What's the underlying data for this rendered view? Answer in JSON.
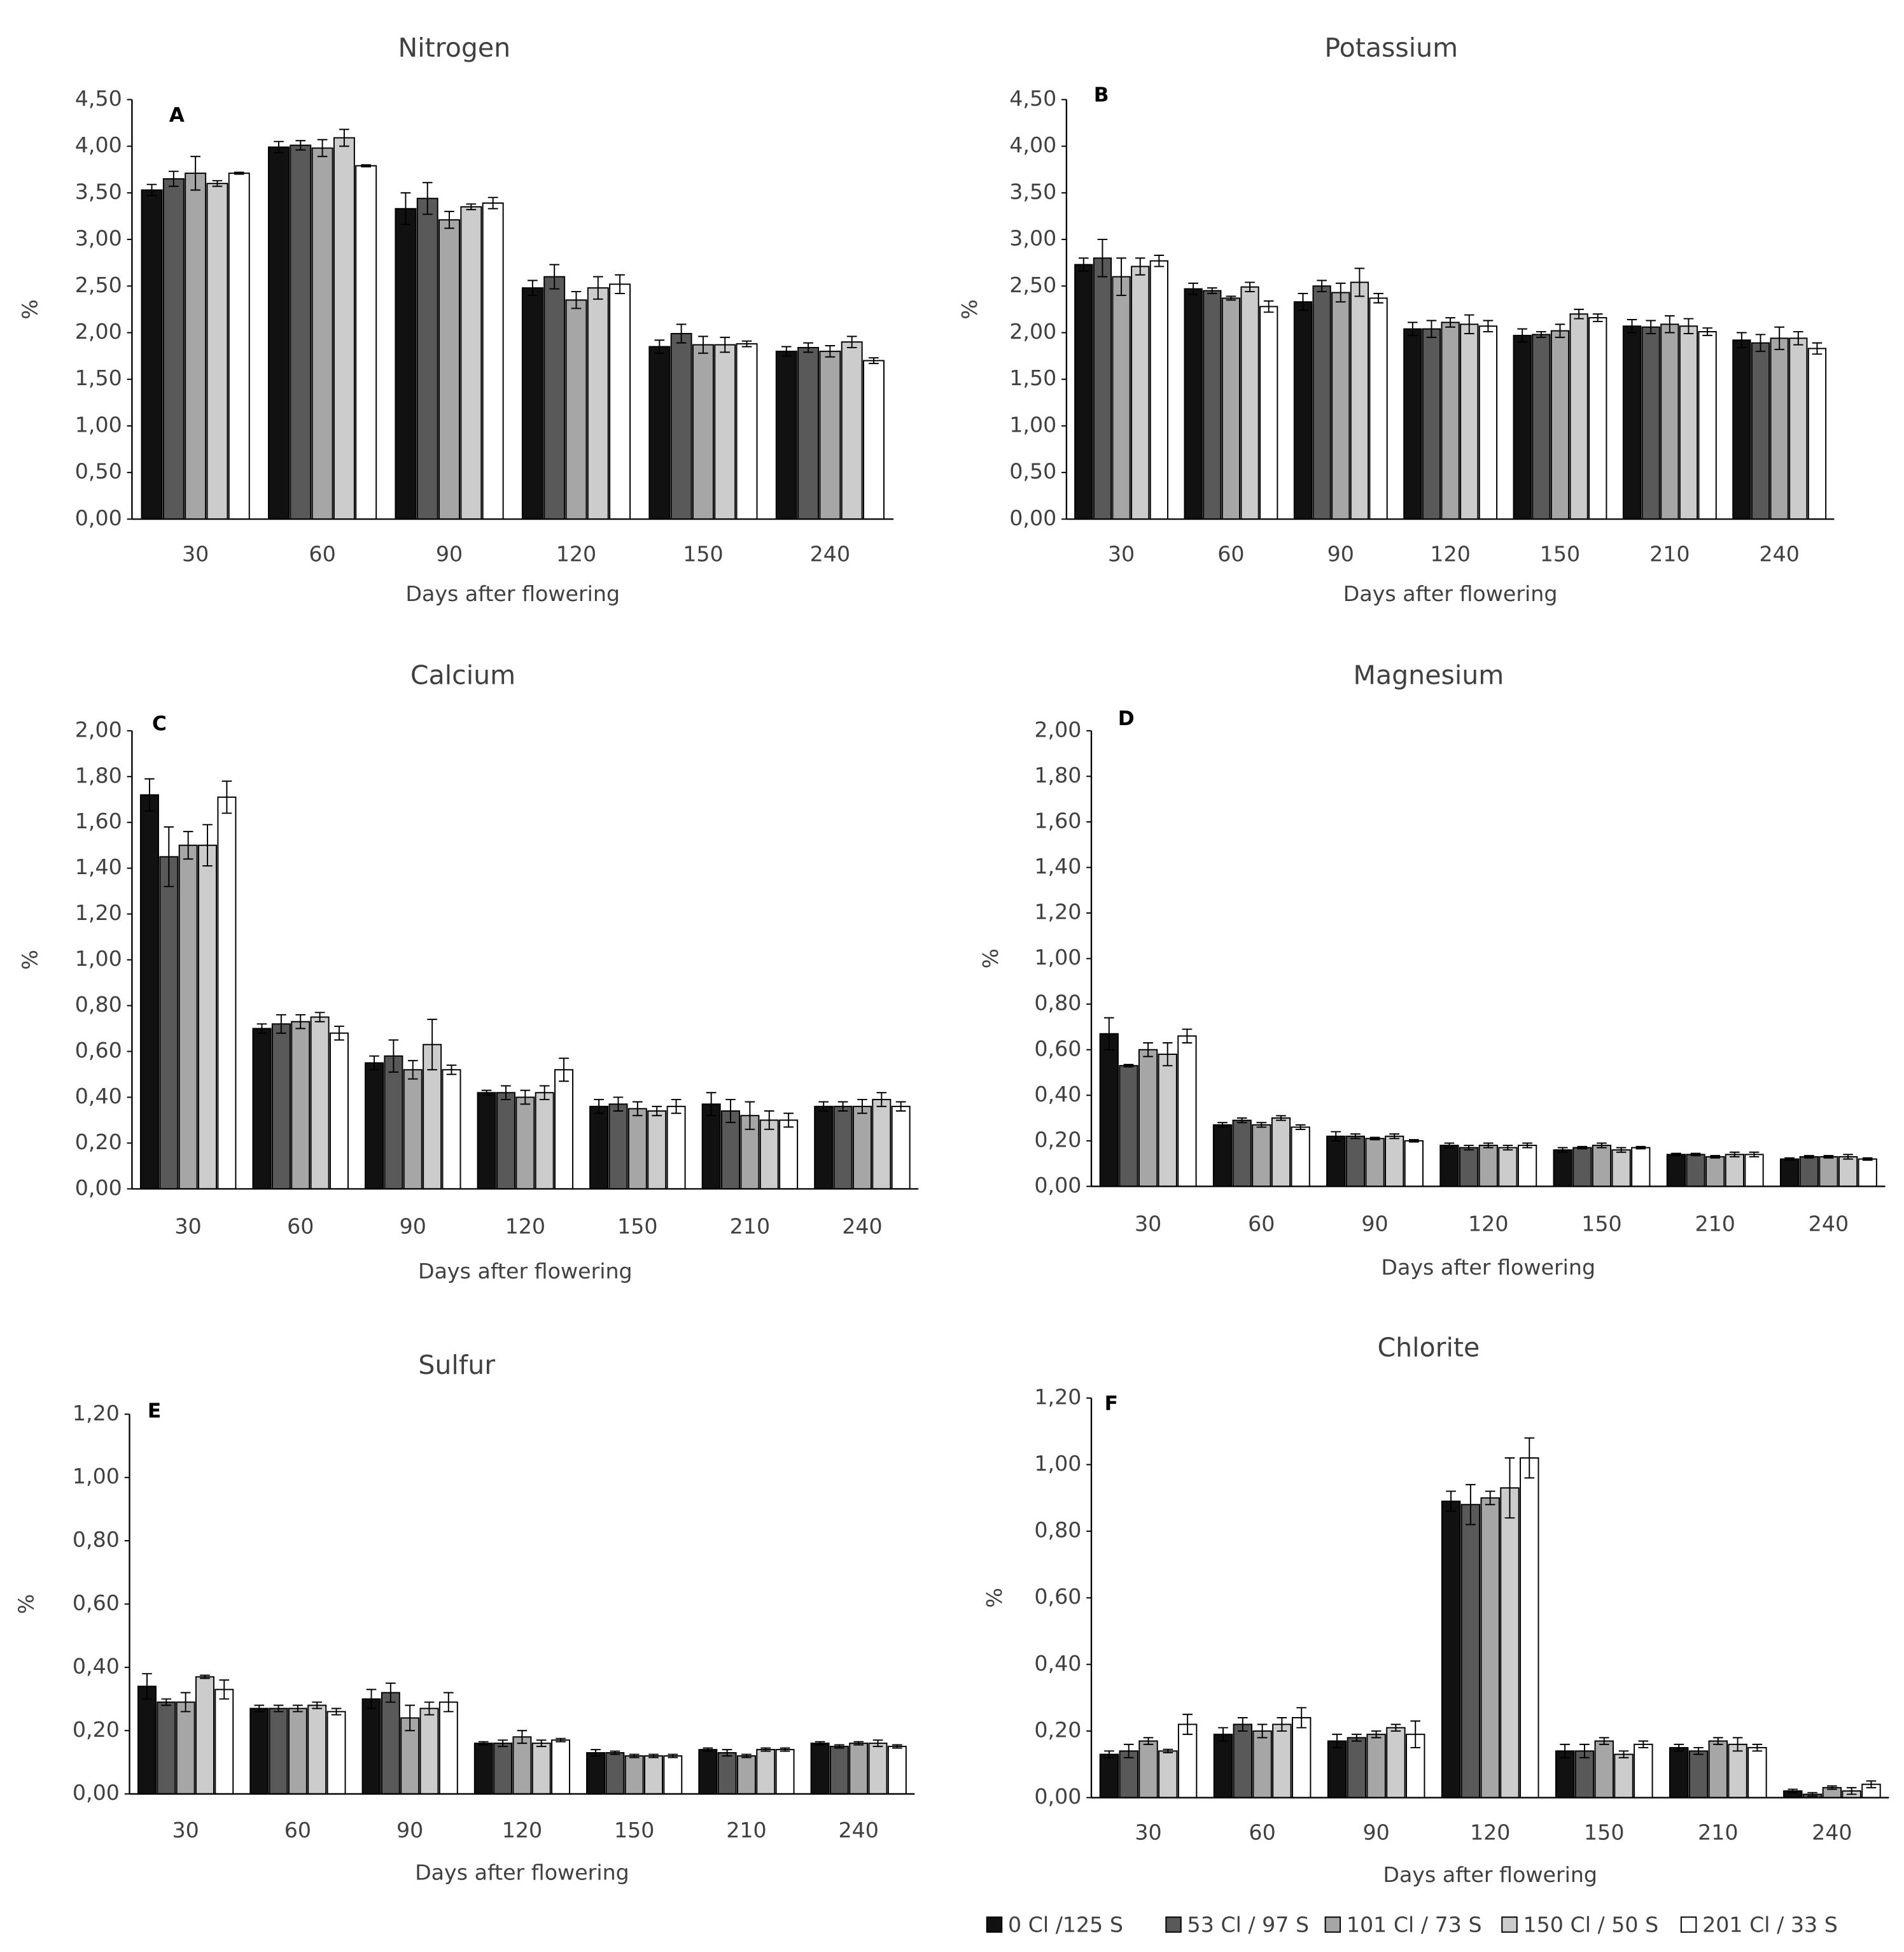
{
  "legend": [
    {
      "name": "0 Cl /125 S",
      "color": "#111111"
    },
    {
      "name": "53 Cl / 97 S",
      "color": "#595959"
    },
    {
      "name": "101 Cl / 73 S",
      "color": "#a6a6a6"
    },
    {
      "name": "150 Cl / 50 S",
      "color": "#cccccc"
    },
    {
      "name": "201 Cl / 33 S",
      "color": "#ffffff"
    }
  ],
  "chart_data": [
    {
      "type": "bar",
      "title": "Nitrogen",
      "panel": "A",
      "y_label": "%",
      "x_label": "Days after flowering",
      "categories": [
        "30",
        "60",
        "90",
        "120",
        "150",
        "240"
      ],
      "ylim": [
        0,
        4.5
      ],
      "yticks": [
        {
          "value": 0,
          "label": "0,00"
        },
        {
          "value": 0.5,
          "label": "0,50"
        },
        {
          "value": 1,
          "label": "1,00"
        },
        {
          "value": 1.5,
          "label": "1,50"
        },
        {
          "value": 2,
          "label": "2,00"
        },
        {
          "value": 2.5,
          "label": "2,50"
        },
        {
          "value": 3,
          "label": "3,00"
        },
        {
          "value": 3.5,
          "label": "3,50"
        },
        {
          "value": 4,
          "label": "4,00"
        },
        {
          "value": 4.5,
          "label": "4,50"
        }
      ],
      "series": [
        {
          "values": [
            3.53,
            3.99,
            3.33,
            2.48,
            1.85,
            1.8
          ],
          "errors": [
            0.06,
            0.06,
            0.17,
            0.08,
            0.07,
            0.05
          ]
        },
        {
          "values": [
            3.65,
            4.01,
            3.44,
            2.6,
            1.99,
            1.84
          ],
          "errors": [
            0.08,
            0.05,
            0.17,
            0.13,
            0.1,
            0.05
          ]
        },
        {
          "values": [
            3.71,
            3.98,
            3.21,
            2.35,
            1.87,
            1.8
          ],
          "errors": [
            0.18,
            0.09,
            0.09,
            0.09,
            0.09,
            0.06
          ]
        },
        {
          "values": [
            3.6,
            4.09,
            3.35,
            2.48,
            1.87,
            1.9
          ],
          "errors": [
            0.03,
            0.09,
            0.03,
            0.12,
            0.08,
            0.06
          ]
        },
        {
          "values": [
            3.71,
            3.79,
            3.39,
            2.52,
            1.88,
            1.7
          ],
          "errors": [
            0.01,
            0.01,
            0.06,
            0.1,
            0.03,
            0.03
          ]
        }
      ]
    },
    {
      "type": "bar",
      "title": "Potassium",
      "panel": "B",
      "y_label": "%",
      "x_label": "Days after flowering",
      "categories": [
        "30",
        "60",
        "90",
        "120",
        "150",
        "210",
        "240"
      ],
      "ylim": [
        0,
        4.5
      ],
      "yticks": [
        {
          "value": 0,
          "label": "0,00"
        },
        {
          "value": 0.5,
          "label": "0,50"
        },
        {
          "value": 1,
          "label": "1,00"
        },
        {
          "value": 1.5,
          "label": "1,50"
        },
        {
          "value": 2,
          "label": "2,00"
        },
        {
          "value": 2.5,
          "label": "2,50"
        },
        {
          "value": 3,
          "label": "3,00"
        },
        {
          "value": 3.5,
          "label": "3,50"
        },
        {
          "value": 4,
          "label": "4,00"
        },
        {
          "value": 4.5,
          "label": "4,50"
        }
      ],
      "series": [
        {
          "values": [
            2.73,
            2.47,
            2.33,
            2.04,
            1.97,
            2.07,
            1.92
          ],
          "errors": [
            0.07,
            0.06,
            0.09,
            0.07,
            0.07,
            0.07,
            0.08
          ]
        },
        {
          "values": [
            2.8,
            2.45,
            2.5,
            2.04,
            1.98,
            2.06,
            1.89
          ],
          "errors": [
            0.2,
            0.03,
            0.06,
            0.09,
            0.03,
            0.07,
            0.09
          ]
        },
        {
          "values": [
            2.6,
            2.37,
            2.43,
            2.11,
            2.02,
            2.09,
            1.94
          ],
          "errors": [
            0.2,
            0.02,
            0.1,
            0.05,
            0.07,
            0.09,
            0.12
          ]
        },
        {
          "values": [
            2.71,
            2.49,
            2.54,
            2.09,
            2.2,
            2.07,
            1.94
          ],
          "errors": [
            0.09,
            0.05,
            0.15,
            0.1,
            0.05,
            0.08,
            0.07
          ]
        },
        {
          "values": [
            2.77,
            2.28,
            2.37,
            2.07,
            2.16,
            2.01,
            1.83
          ],
          "errors": [
            0.06,
            0.06,
            0.05,
            0.06,
            0.04,
            0.04,
            0.06
          ]
        }
      ]
    },
    {
      "type": "bar",
      "title": "Calcium",
      "panel": "C",
      "y_label": "%",
      "x_label": "Days after flowering",
      "categories": [
        "30",
        "60",
        "90",
        "120",
        "150",
        "210",
        "240"
      ],
      "ylim": [
        0,
        2
      ],
      "yticks": [
        {
          "value": 0,
          "label": "0,00"
        },
        {
          "value": 0.2,
          "label": "0,20"
        },
        {
          "value": 0.4,
          "label": "0,40"
        },
        {
          "value": 0.6,
          "label": "0,60"
        },
        {
          "value": 0.8,
          "label": "0,80"
        },
        {
          "value": 1,
          "label": "1,00"
        },
        {
          "value": 1.2,
          "label": "1,20"
        },
        {
          "value": 1.4,
          "label": "1,40"
        },
        {
          "value": 1.6,
          "label": "1,60"
        },
        {
          "value": 1.8,
          "label": "1,80"
        },
        {
          "value": 2,
          "label": "2,00"
        }
      ],
      "series": [
        {
          "values": [
            1.72,
            0.7,
            0.55,
            0.42,
            0.36,
            0.37,
            0.36
          ],
          "errors": [
            0.07,
            0.02,
            0.03,
            0.01,
            0.03,
            0.05,
            0.02
          ]
        },
        {
          "values": [
            1.45,
            0.72,
            0.58,
            0.42,
            0.37,
            0.34,
            0.36
          ],
          "errors": [
            0.13,
            0.04,
            0.07,
            0.03,
            0.03,
            0.05,
            0.02
          ]
        },
        {
          "values": [
            1.5,
            0.73,
            0.52,
            0.4,
            0.35,
            0.32,
            0.36
          ],
          "errors": [
            0.06,
            0.03,
            0.04,
            0.03,
            0.03,
            0.06,
            0.03
          ]
        },
        {
          "values": [
            1.5,
            0.75,
            0.63,
            0.42,
            0.34,
            0.3,
            0.39
          ],
          "errors": [
            0.09,
            0.02,
            0.11,
            0.03,
            0.02,
            0.04,
            0.03
          ]
        },
        {
          "values": [
            1.71,
            0.68,
            0.52,
            0.52,
            0.36,
            0.3,
            0.36
          ],
          "errors": [
            0.07,
            0.03,
            0.02,
            0.05,
            0.03,
            0.03,
            0.02
          ]
        }
      ]
    },
    {
      "type": "bar",
      "title": "Magnesium",
      "panel": "D",
      "y_label": "%",
      "x_label": "Days after flowering",
      "categories": [
        "30",
        "60",
        "90",
        "120",
        "150",
        "210",
        "240"
      ],
      "ylim": [
        0,
        2
      ],
      "yticks": [
        {
          "value": 0,
          "label": "0,00"
        },
        {
          "value": 0.2,
          "label": "0,20"
        },
        {
          "value": 0.4,
          "label": "0,40"
        },
        {
          "value": 0.6,
          "label": "0,60"
        },
        {
          "value": 0.8,
          "label": "0,80"
        },
        {
          "value": 1,
          "label": "1,00"
        },
        {
          "value": 1.2,
          "label": "1,20"
        },
        {
          "value": 1.4,
          "label": "1,40"
        },
        {
          "value": 1.6,
          "label": "1,60"
        },
        {
          "value": 1.8,
          "label": "1,80"
        },
        {
          "value": 2,
          "label": "2,00"
        }
      ],
      "series": [
        {
          "values": [
            0.67,
            0.27,
            0.22,
            0.18,
            0.16,
            0.14,
            0.12
          ],
          "errors": [
            0.07,
            0.01,
            0.02,
            0.01,
            0.01,
            0.005,
            0.005
          ]
        },
        {
          "values": [
            0.53,
            0.29,
            0.22,
            0.17,
            0.17,
            0.14,
            0.13
          ],
          "errors": [
            0.005,
            0.01,
            0.01,
            0.01,
            0.005,
            0.005,
            0.005
          ]
        },
        {
          "values": [
            0.6,
            0.27,
            0.21,
            0.18,
            0.18,
            0.13,
            0.13
          ],
          "errors": [
            0.03,
            0.01,
            0.005,
            0.01,
            0.01,
            0.005,
            0.005
          ]
        },
        {
          "values": [
            0.58,
            0.3,
            0.22,
            0.17,
            0.16,
            0.14,
            0.13
          ],
          "errors": [
            0.05,
            0.01,
            0.01,
            0.01,
            0.01,
            0.01,
            0.01
          ]
        },
        {
          "values": [
            0.66,
            0.26,
            0.2,
            0.18,
            0.17,
            0.14,
            0.12
          ],
          "errors": [
            0.03,
            0.01,
            0.005,
            0.01,
            0.005,
            0.01,
            0.005
          ]
        }
      ]
    },
    {
      "type": "bar",
      "title": "Sulfur",
      "panel": "E",
      "y_label": "%",
      "x_label": "Days after flowering",
      "categories": [
        "30",
        "60",
        "90",
        "120",
        "150",
        "210",
        "240"
      ],
      "ylim": [
        0,
        1.2
      ],
      "yticks": [
        {
          "value": 0,
          "label": "0,00"
        },
        {
          "value": 0.2,
          "label": "0,20"
        },
        {
          "value": 0.4,
          "label": "0,40"
        },
        {
          "value": 0.6,
          "label": "0,60"
        },
        {
          "value": 0.8,
          "label": "0,80"
        },
        {
          "value": 1,
          "label": "1,00"
        },
        {
          "value": 1.2,
          "label": "1,20"
        }
      ],
      "series": [
        {
          "values": [
            0.34,
            0.27,
            0.3,
            0.16,
            0.13,
            0.14,
            0.16
          ],
          "errors": [
            0.04,
            0.01,
            0.03,
            0.005,
            0.01,
            0.005,
            0.005
          ]
        },
        {
          "values": [
            0.29,
            0.27,
            0.32,
            0.16,
            0.13,
            0.13,
            0.15
          ],
          "errors": [
            0.01,
            0.01,
            0.03,
            0.01,
            0.005,
            0.01,
            0.005
          ]
        },
        {
          "values": [
            0.29,
            0.27,
            0.24,
            0.18,
            0.12,
            0.12,
            0.16
          ],
          "errors": [
            0.03,
            0.01,
            0.04,
            0.02,
            0.005,
            0.005,
            0.005
          ]
        },
        {
          "values": [
            0.37,
            0.28,
            0.27,
            0.16,
            0.12,
            0.14,
            0.16
          ],
          "errors": [
            0.005,
            0.01,
            0.02,
            0.01,
            0.005,
            0.005,
            0.01
          ]
        },
        {
          "values": [
            0.33,
            0.26,
            0.29,
            0.17,
            0.12,
            0.14,
            0.15
          ],
          "errors": [
            0.03,
            0.01,
            0.03,
            0.005,
            0.005,
            0.005,
            0.005
          ]
        }
      ]
    },
    {
      "type": "bar",
      "title": "Chlorite",
      "panel": "F",
      "y_label": "%",
      "x_label": "Days after flowering",
      "categories": [
        "30",
        "60",
        "90",
        "120",
        "150",
        "210",
        "240"
      ],
      "ylim": [
        0,
        1.2
      ],
      "yticks": [
        {
          "value": 0,
          "label": "0,00"
        },
        {
          "value": 0.2,
          "label": "0,20"
        },
        {
          "value": 0.4,
          "label": "0,40"
        },
        {
          "value": 0.6,
          "label": "0,60"
        },
        {
          "value": 0.8,
          "label": "0,80"
        },
        {
          "value": 1,
          "label": "1,00"
        },
        {
          "value": 1.2,
          "label": "1,20"
        }
      ],
      "series": [
        {
          "values": [
            0.13,
            0.19,
            0.17,
            0.89,
            0.14,
            0.15,
            0.02
          ],
          "errors": [
            0.01,
            0.02,
            0.02,
            0.03,
            0.02,
            0.01,
            0.005
          ]
        },
        {
          "values": [
            0.14,
            0.22,
            0.18,
            0.88,
            0.14,
            0.14,
            0.01
          ],
          "errors": [
            0.02,
            0.02,
            0.01,
            0.06,
            0.02,
            0.01,
            0.005
          ]
        },
        {
          "values": [
            0.17,
            0.2,
            0.19,
            0.9,
            0.17,
            0.17,
            0.03
          ],
          "errors": [
            0.01,
            0.02,
            0.01,
            0.02,
            0.01,
            0.01,
            0.005
          ]
        },
        {
          "values": [
            0.14,
            0.22,
            0.21,
            0.93,
            0.13,
            0.16,
            0.02
          ],
          "errors": [
            0.005,
            0.02,
            0.01,
            0.09,
            0.01,
            0.02,
            0.01
          ]
        },
        {
          "values": [
            0.22,
            0.24,
            0.19,
            1.02,
            0.16,
            0.15,
            0.04
          ],
          "errors": [
            0.03,
            0.03,
            0.04,
            0.06,
            0.01,
            0.01,
            0.01
          ]
        }
      ]
    }
  ]
}
